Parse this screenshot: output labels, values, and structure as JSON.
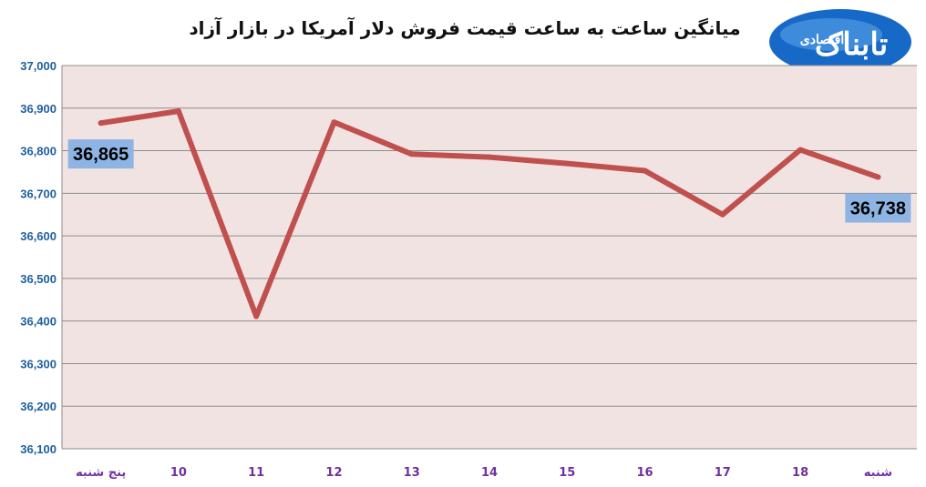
{
  "logo": {
    "main_text": "تابناک",
    "sub_text": "اقتصادی"
  },
  "colors": {
    "line": "#c0504d",
    "plot_bg": "#f2e3e3",
    "grid": "#8c8c8c",
    "label_box": "#8eb4e3",
    "ytick": "#1f5f9e",
    "xtick": "#7030a0"
  },
  "chart_data": {
    "type": "line",
    "title": "میانگین ساعت به ساعت قیمت فروش دلار آمریکا در بازار آزاد",
    "categories": [
      "پنج شنبه",
      "10",
      "11",
      "12",
      "13",
      "14",
      "15",
      "16",
      "17",
      "18",
      "شنبه"
    ],
    "series": [
      {
        "values": [
          36865,
          36893,
          36411,
          36867,
          36792,
          36785,
          36770,
          36753,
          36650,
          36802,
          36738
        ]
      }
    ],
    "data_labels": [
      {
        "index": 0,
        "text": "36,865"
      },
      {
        "index": 10,
        "text": "36,738"
      }
    ],
    "ylim": [
      36100,
      37000
    ],
    "yticks": [
      36100,
      36200,
      36300,
      36400,
      36500,
      36600,
      36700,
      36800,
      36900,
      37000
    ],
    "ytick_labels": [
      "36,100",
      "36,200",
      "36,300",
      "36,400",
      "36,500",
      "36,600",
      "36,700",
      "36,800",
      "36,900",
      "37,000"
    ],
    "xlabel": "",
    "ylabel": "",
    "grid": true,
    "legend": "none"
  }
}
